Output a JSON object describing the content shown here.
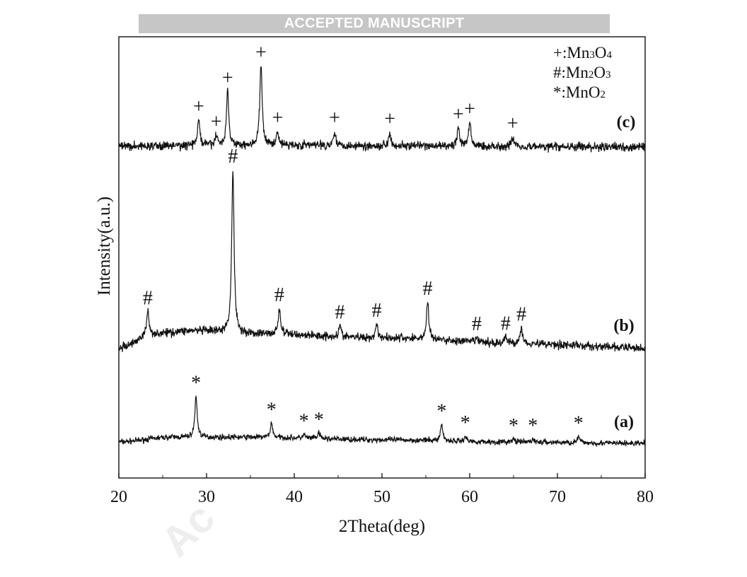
{
  "banner": {
    "text": "ACCEPTED MANUSCRIPT"
  },
  "watermark": {
    "text": "Ac"
  },
  "chart_data": {
    "type": "line",
    "xlabel": "2Theta(deg)",
    "ylabel": "Intensity(a.u.)",
    "xlim": [
      20,
      80
    ],
    "x_ticks": [
      20,
      30,
      40,
      50,
      60,
      70,
      80
    ],
    "y_ticks_shown": false,
    "grid": false,
    "legend": {
      "placement": "top-right",
      "entries": [
        {
          "marker": "+",
          "sep": ":",
          "pre": "Mn",
          "n1": "3",
          "mid": "O",
          "n2": "4"
        },
        {
          "marker": "#",
          "sep": ":",
          "pre": "Mn",
          "n1": "2",
          "mid": "O",
          "n2": "3"
        },
        {
          "marker": "*",
          "sep": ":",
          "pre": "MnO",
          "n1": "2",
          "mid": "",
          "n2": ""
        }
      ]
    },
    "series": [
      {
        "name": "(a)",
        "marker": "*",
        "baseline_shape": [
          [
            20,
            0.3
          ],
          [
            26,
            1.2
          ],
          [
            35,
            1.2
          ],
          [
            50,
            0.7
          ],
          [
            65,
            0.25
          ],
          [
            80,
            0
          ]
        ],
        "peaks": [
          {
            "x": 28.8,
            "height": 8.0,
            "marked": true
          },
          {
            "x": 37.4,
            "height": 2.8,
            "marked": true
          },
          {
            "x": 41.1,
            "height": 0.7,
            "marked": true
          },
          {
            "x": 42.8,
            "height": 1.1,
            "marked": true
          },
          {
            "x": 56.8,
            "height": 3.2,
            "marked": true
          },
          {
            "x": 59.5,
            "height": 1.0,
            "marked": true
          },
          {
            "x": 65.0,
            "height": 0.6,
            "marked": true
          },
          {
            "x": 67.2,
            "height": 0.6,
            "marked": true
          },
          {
            "x": 72.4,
            "height": 1.2,
            "marked": true
          }
        ]
      },
      {
        "name": "(b)",
        "marker": "#",
        "baseline_shape": [
          [
            20,
            0
          ],
          [
            24,
            1.8
          ],
          [
            28,
            2.2
          ],
          [
            36,
            1.8
          ],
          [
            50,
            1.3
          ],
          [
            65,
            0.6
          ],
          [
            80,
            0
          ]
        ],
        "peaks": [
          {
            "x": 23.3,
            "height": 3.0,
            "marked": true
          },
          {
            "x": 33.0,
            "height": 21.0,
            "marked": true
          },
          {
            "x": 38.3,
            "height": 3.3,
            "marked": true
          },
          {
            "x": 45.2,
            "height": 1.4,
            "marked": true
          },
          {
            "x": 49.4,
            "height": 1.8,
            "marked": true
          },
          {
            "x": 55.2,
            "height": 4.8,
            "marked": true
          },
          {
            "x": 60.8,
            "height": 0.6,
            "marked": true
          },
          {
            "x": 64.1,
            "height": 0.8,
            "marked": true
          },
          {
            "x": 65.9,
            "height": 2.0,
            "marked": true
          }
        ]
      },
      {
        "name": "(c)",
        "marker": "+",
        "baseline_shape": [
          [
            20,
            0.1
          ],
          [
            30,
            0.2
          ],
          [
            40,
            0.25
          ],
          [
            50,
            0.15
          ],
          [
            60,
            0.1
          ],
          [
            80,
            0
          ]
        ],
        "peaks": [
          {
            "x": 29.1,
            "height": 3.2,
            "marked": true
          },
          {
            "x": 31.1,
            "height": 1.2,
            "marked": true
          },
          {
            "x": 32.4,
            "height": 6.8,
            "marked": true
          },
          {
            "x": 36.2,
            "height": 10.0,
            "marked": true
          },
          {
            "x": 38.1,
            "height": 1.7,
            "marked": true
          },
          {
            "x": 44.6,
            "height": 1.8,
            "marked": true
          },
          {
            "x": 50.9,
            "height": 1.7,
            "marked": true
          },
          {
            "x": 58.7,
            "height": 2.3,
            "marked": true
          },
          {
            "x": 60.0,
            "height": 3.0,
            "marked": true
          },
          {
            "x": 64.9,
            "height": 1.2,
            "marked": true
          }
        ]
      }
    ]
  }
}
